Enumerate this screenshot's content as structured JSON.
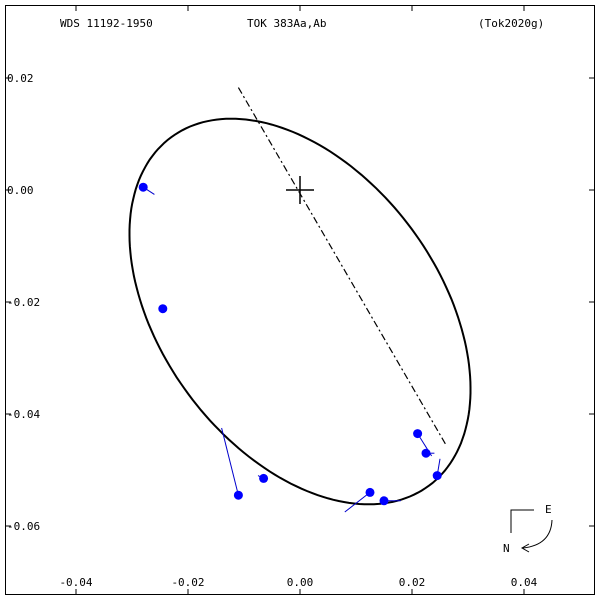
{
  "header": {
    "left": "WDS 11192-1950",
    "center": "TOK 383Aa,Ab",
    "right": "(Tok2020g)"
  },
  "compass": {
    "east": "E",
    "north": "N"
  },
  "colors": {
    "points": "#0000ff",
    "residuals": "#0000cc",
    "orbit": "#000000"
  },
  "chart_data": {
    "type": "scatter",
    "title": "",
    "xlabel": "",
    "ylabel": "",
    "xlim": [
      -0.052,
      0.052
    ],
    "ylim": [
      -0.071,
      0.0255
    ],
    "x_ticks": [
      -0.04,
      -0.02,
      0.0,
      0.02,
      0.04
    ],
    "x_tick_labels": [
      "-0.04",
      "-0.02",
      "0.00",
      "0.02",
      "0.04"
    ],
    "y_ticks": [
      0.02,
      0.0,
      -0.02,
      -0.04,
      -0.06
    ],
    "y_tick_labels": [
      "0.02",
      "0.00",
      "-0.02",
      "-0.04",
      "-0.06"
    ],
    "grid": false,
    "primary": {
      "x": 0.0,
      "y": 0.0,
      "marker": "plus"
    },
    "orbit_ellipse": {
      "center": [
        0.0,
        -0.0217
      ],
      "semi_major": 0.0387,
      "semi_minor": 0.0248,
      "rotation_deg": -53.5
    },
    "line_of_nodes": [
      [
        -0.011,
        0.0183
      ],
      [
        0.026,
        -0.0454
      ]
    ],
    "observations": [
      {
        "x": -0.028,
        "y": 0.0005,
        "fit_x": -0.026,
        "fit_y": -0.0008
      },
      {
        "x": -0.0245,
        "y": -0.0212,
        "fit_x": -0.025,
        "fit_y": -0.021
      },
      {
        "x": -0.011,
        "y": -0.0545,
        "fit_x": -0.014,
        "fit_y": -0.0425
      },
      {
        "x": -0.0065,
        "y": -0.0515,
        "fit_x": -0.0075,
        "fit_y": -0.051
      },
      {
        "x": 0.0125,
        "y": -0.054,
        "fit_x": 0.008,
        "fit_y": -0.0575
      },
      {
        "x": 0.015,
        "y": -0.0555,
        "fit_x": 0.018,
        "fit_y": -0.0555
      },
      {
        "x": 0.021,
        "y": -0.0435,
        "fit_x": 0.0235,
        "fit_y": -0.0475
      },
      {
        "x": 0.0225,
        "y": -0.047,
        "fit_x": 0.024,
        "fit_y": -0.047
      },
      {
        "x": 0.0245,
        "y": -0.051,
        "fit_x": 0.025,
        "fit_y": -0.048
      }
    ]
  }
}
